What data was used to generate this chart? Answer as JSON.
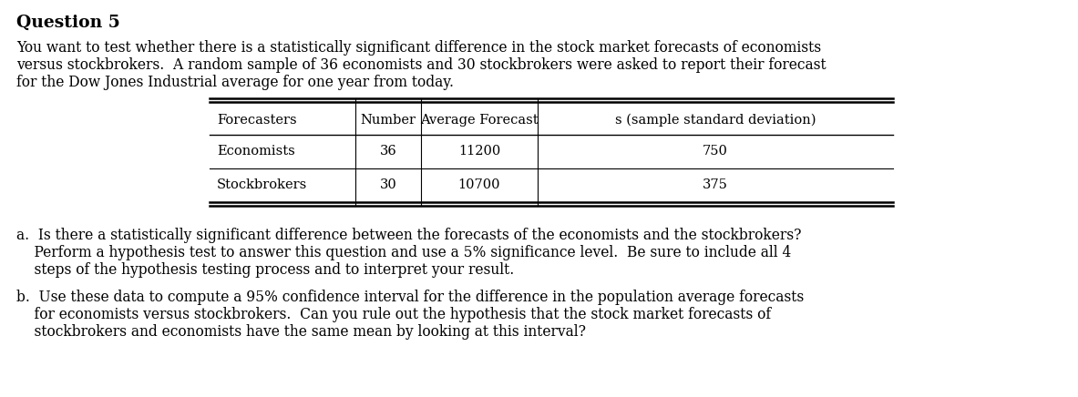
{
  "title": "Question 5",
  "intro_line1": "You want to test whether there is a statistically significant difference in the stock market forecasts of economists",
  "intro_line2": "versus stockbrokers.  A random sample of 36 economists and 30 stockbrokers were asked to report their forecast",
  "intro_line3": "for the Dow Jones Industrial average for one year from today.",
  "table_headers": [
    "Forecasters",
    "Number",
    "Average Forecast",
    "s (sample standard deviation)"
  ],
  "table_row1": [
    "Economists",
    "36",
    "11200",
    "750"
  ],
  "table_row2": [
    "Stockbrokers",
    "30",
    "10700",
    "375"
  ],
  "part_a_line1": "a.  Is there a statistically significant difference between the forecasts of the economists and the stockbrokers?",
  "part_a_line2": "    Perform a hypothesis test to answer this question and use a 5% significance level.  Be sure to include all 4",
  "part_a_line3": "    steps of the hypothesis testing process and to interpret your result.",
  "part_b_line1": "b.  Use these data to compute a 95% confidence interval for the difference in the population average forecasts",
  "part_b_line2": "    for economists versus stockbrokers.  Can you rule out the hypothesis that the stock market forecasts of",
  "part_b_line3": "    stockbrokers and economists have the same mean by looking at this interval?",
  "background_color": "#ffffff",
  "text_color": "#000000",
  "font_size_title": 13.5,
  "font_size_body": 11.2,
  "font_size_table": 10.5,
  "font_family": "DejaVu Serif",
  "fig_width": 11.83,
  "fig_height": 4.36,
  "dpi": 100
}
